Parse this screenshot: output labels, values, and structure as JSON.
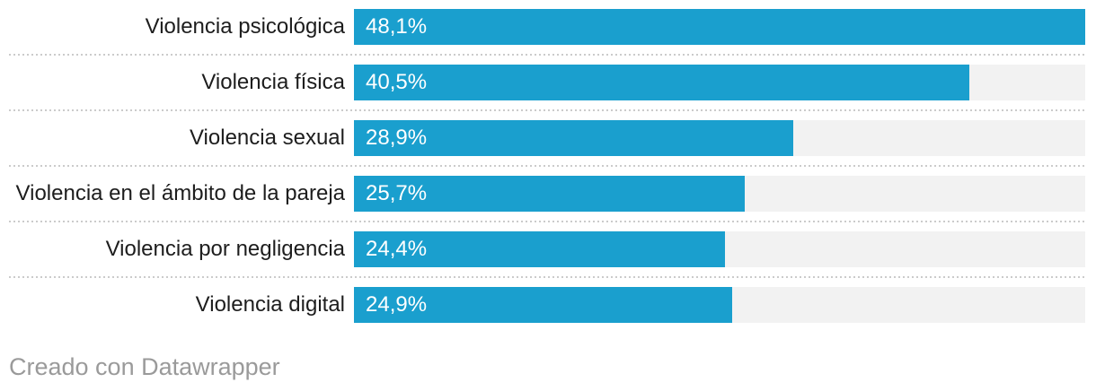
{
  "chart_data": {
    "type": "bar",
    "orientation": "horizontal",
    "title": "",
    "xlabel": "",
    "ylabel": "",
    "xlim": [
      0,
      48.1
    ],
    "grid": "dotted-row-separators",
    "legend": "none",
    "categories": [
      "Violencia psicológica",
      "Violencia física",
      "Violencia sexual",
      "Violencia en el ámbito de la pareja",
      "Violencia por negligencia",
      "Violencia digital"
    ],
    "values": [
      48.1,
      40.5,
      28.9,
      25.7,
      24.4,
      24.9
    ],
    "value_labels": [
      "48,1%",
      "40,5%",
      "28,9%",
      "25,7%",
      "24,4%",
      "24,9%"
    ]
  },
  "colors": {
    "bar": "#1a9fce",
    "track": "#f2f2f2",
    "separator": "#cbcbcb",
    "label_text": "#1d1d1d",
    "value_text": "#ffffff",
    "credit_text": "#9a9a9a",
    "background": "#ffffff"
  },
  "footer": {
    "credit": "Creado con Datawrapper"
  }
}
